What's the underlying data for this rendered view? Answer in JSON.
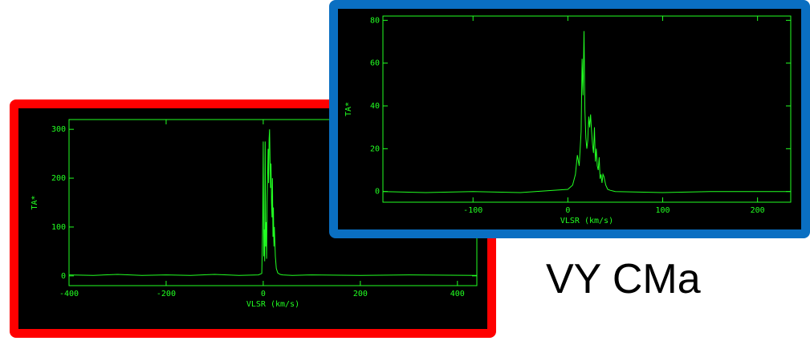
{
  "object_label": "VY CMa",
  "colors": {
    "left_frame": "#ff0000",
    "right_frame": "#0a6fc2",
    "trace": "#22ff22",
    "background": "#000000"
  },
  "chart_data": [
    {
      "type": "line",
      "panel": "left",
      "xlabel": "VLSR (km/s)",
      "ylabel": "TA*",
      "xlim": [
        -400,
        440
      ],
      "ylim": [
        -20,
        320
      ],
      "xticks": [
        -400,
        -200,
        0,
        200,
        400
      ],
      "yticks": [
        0,
        100,
        200,
        300
      ],
      "grid": false,
      "series": [
        {
          "x": [
            -400,
            -350,
            -300,
            -250,
            -200,
            -150,
            -100,
            -50,
            -10,
            -3,
            -1,
            0,
            1,
            2,
            3,
            4,
            5,
            6,
            7,
            8,
            9,
            10,
            11,
            12,
            13,
            14,
            15,
            16,
            17,
            18,
            19,
            20,
            21,
            22,
            23,
            25,
            27,
            30,
            35,
            40,
            60,
            100,
            200,
            300,
            440
          ],
          "y": [
            2,
            1,
            3,
            1,
            2,
            1,
            3,
            1,
            2,
            5,
            120,
            275,
            40,
            95,
            30,
            275,
            60,
            110,
            35,
            150,
            200,
            260,
            190,
            280,
            300,
            240,
            180,
            230,
            150,
            120,
            200,
            80,
            140,
            60,
            100,
            40,
            15,
            6,
            3,
            2,
            1,
            2,
            1,
            2,
            1
          ]
        }
      ]
    },
    {
      "type": "line",
      "panel": "right",
      "xlabel": "VLSR (km/s)",
      "ylabel": "TA*",
      "xlim": [
        -195,
        235
      ],
      "ylim": [
        -5,
        82
      ],
      "xticks": [
        -100,
        0,
        100,
        200
      ],
      "yticks": [
        0,
        20,
        40,
        60,
        80
      ],
      "grid": false,
      "series": [
        {
          "x": [
            -195,
            -150,
            -100,
            -50,
            0,
            5,
            8,
            10,
            12,
            14,
            15,
            16,
            17,
            18,
            19,
            20,
            21,
            22,
            23,
            24,
            25,
            26,
            27,
            28,
            29,
            30,
            31,
            32,
            33,
            34,
            35,
            36,
            37,
            38,
            40,
            42,
            45,
            50,
            100,
            150,
            235
          ],
          "y": [
            0,
            -0.5,
            0,
            -0.5,
            1,
            3,
            8,
            17,
            12,
            28,
            62,
            45,
            75,
            38,
            25,
            20,
            24,
            35,
            30,
            36,
            28,
            22,
            18,
            30,
            14,
            20,
            12,
            10,
            16,
            6,
            8,
            4,
            8,
            7,
            3,
            1,
            0.5,
            0,
            -0.5,
            0,
            0
          ]
        }
      ]
    }
  ]
}
